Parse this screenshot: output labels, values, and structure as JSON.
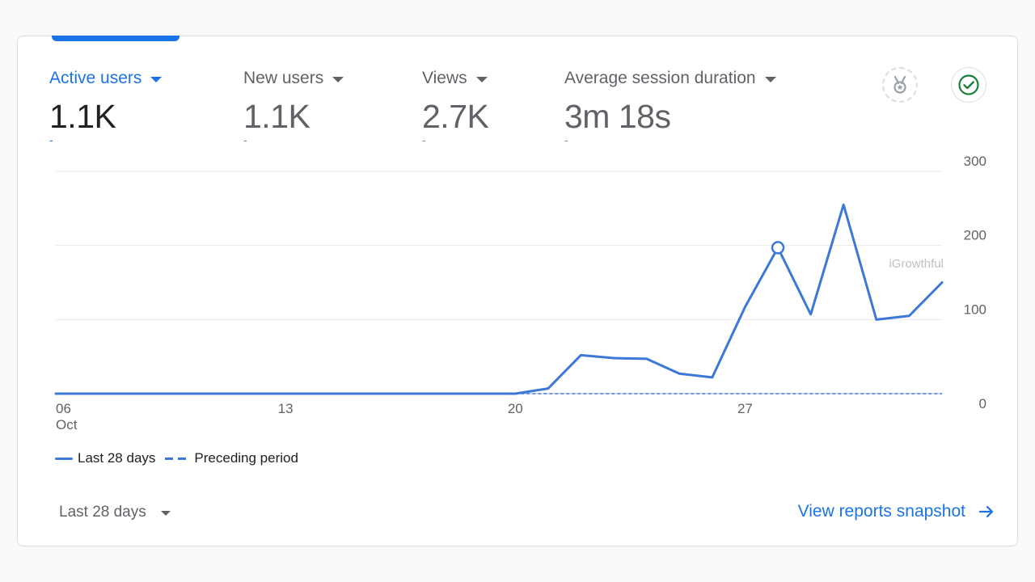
{
  "metrics": [
    {
      "label": "Active users",
      "value": "1.1K",
      "delta": "-",
      "active": true
    },
    {
      "label": "New users",
      "value": "1.1K",
      "delta": "-",
      "active": false
    },
    {
      "label": "Views",
      "value": "2.7K",
      "delta": "-",
      "active": false
    },
    {
      "label": "Average session duration",
      "value": "3m 18s",
      "delta": "-",
      "active": false
    }
  ],
  "icons": {
    "badge": "medal-badge-icon",
    "check": "check-circle-icon"
  },
  "colors": {
    "accent": "#1a73e8",
    "line": "#3c78d8",
    "check": "#188038"
  },
  "watermark": "iGrowthful",
  "legend": {
    "current": "Last 28 days",
    "previous": "Preceding period"
  },
  "footer": {
    "date_range": "Last 28 days",
    "view_link": "View reports snapshot"
  },
  "chart_data": {
    "type": "line",
    "x_tick_labels": [
      "06\nOct",
      "13",
      "20",
      "27"
    ],
    "y_ticks": [
      0,
      100,
      200,
      300
    ],
    "ylim": [
      0,
      300
    ],
    "y_axis_position": "right",
    "grid": true,
    "legend_position": "bottom-left",
    "series": [
      {
        "name": "Last 28 days",
        "style": "solid",
        "values": [
          0,
          0,
          0,
          0,
          0,
          0,
          0,
          0,
          0,
          0,
          0,
          0,
          0,
          0,
          0,
          7,
          52,
          48,
          47,
          27,
          22,
          117,
          197,
          107,
          255,
          100,
          105,
          150
        ]
      },
      {
        "name": "Preceding period",
        "style": "dashed",
        "values": [
          0,
          0,
          0,
          0,
          0,
          0,
          0,
          0,
          0,
          0,
          0,
          0,
          0,
          0,
          0,
          0,
          0,
          0,
          0,
          0,
          0,
          0,
          0,
          0,
          0,
          0,
          0,
          0
        ],
        "visible_from_index": 14
      }
    ],
    "highlight_index": 22
  }
}
